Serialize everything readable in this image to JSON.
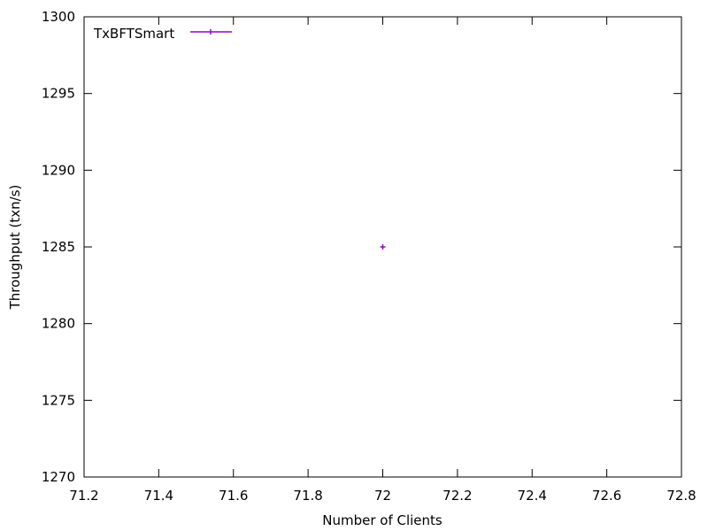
{
  "chart_data": {
    "type": "scatter",
    "title": "",
    "xlabel": "Number of Clients",
    "ylabel": "Throughput (txn/s)",
    "xlim": [
      71.2,
      72.8
    ],
    "ylim": [
      1270,
      1300
    ],
    "xticks": [
      71.2,
      71.4,
      71.6,
      71.8,
      72,
      72.2,
      72.4,
      72.6,
      72.8
    ],
    "xtick_labels": [
      "71.2",
      "71.4",
      "71.6",
      "71.8",
      "72",
      "72.2",
      "72.4",
      "72.6",
      "72.8"
    ],
    "yticks": [
      1270,
      1275,
      1280,
      1285,
      1290,
      1295,
      1300
    ],
    "ytick_labels": [
      "1270",
      "1275",
      "1280",
      "1285",
      "1290",
      "1295",
      "1300"
    ],
    "grid": false,
    "legend_position": "top-left",
    "series": [
      {
        "name": "TxBFTSmart",
        "color": "#9400d3",
        "marker": "plus",
        "x": [
          72
        ],
        "y": [
          1285
        ]
      }
    ]
  }
}
